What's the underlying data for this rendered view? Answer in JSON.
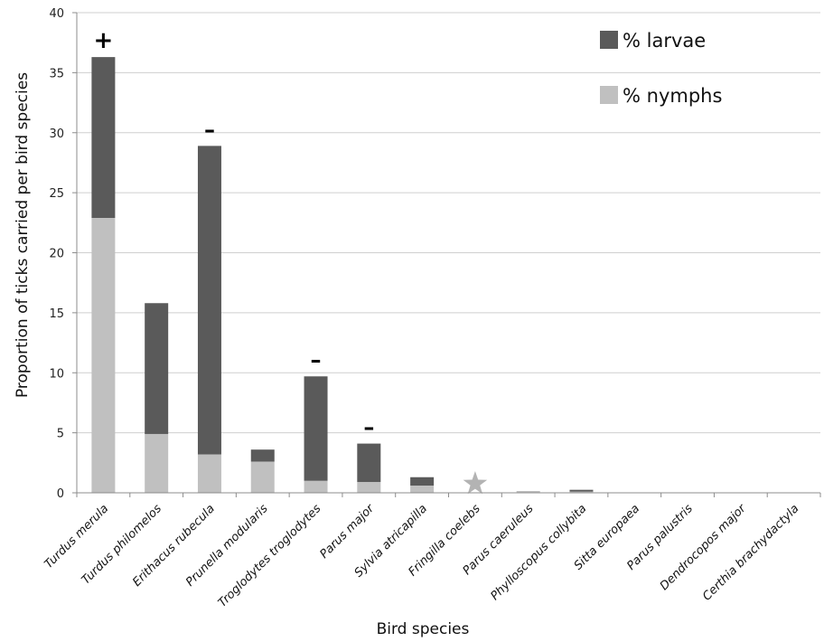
{
  "chart_data": {
    "type": "bar",
    "stacked": true,
    "title": "",
    "xlabel": "Bird species",
    "ylabel": "Proportion of ticks carried per bird species",
    "ylim": [
      0,
      40
    ],
    "yticks": [
      0,
      5,
      10,
      15,
      20,
      25,
      30,
      35,
      40
    ],
    "grid": true,
    "legend_position": "top-right",
    "categories": [
      "Turdus merula",
      "Turdus philomelos",
      "Erithacus rubecula",
      "Prunella modularis",
      "Troglodytes troglodytes",
      "Parus major",
      "Sylvia atricapilla",
      "Fringilla coelebs",
      "Parus caeruleus",
      "Phylloscopus collybita",
      "Sitta europaea",
      "Parus palustris",
      "Dendrocopos major",
      "Certhia brachydactyla"
    ],
    "series": [
      {
        "name": "% nymphs",
        "color": "#c0c0c0",
        "values": [
          22.9,
          4.9,
          3.2,
          2.6,
          1.0,
          0.9,
          0.6,
          0,
          0.15,
          0.1,
          0,
          0,
          0,
          0
        ]
      },
      {
        "name": "% larvae",
        "color": "#5a5a5a",
        "values": [
          13.4,
          10.9,
          25.7,
          1.0,
          8.7,
          3.2,
          0.7,
          0,
          0,
          0.15,
          0,
          0,
          0,
          0
        ]
      }
    ],
    "annotations": [
      {
        "category": "Turdus merula",
        "text": "+"
      },
      {
        "category": "Erithacus rubecula",
        "text": "-"
      },
      {
        "category": "Troglodytes troglodytes",
        "text": "-"
      },
      {
        "category": "Parus major",
        "text": "-"
      },
      {
        "category": "Fringilla coelebs",
        "marker": "star",
        "color": "#b3b3b3"
      }
    ]
  }
}
